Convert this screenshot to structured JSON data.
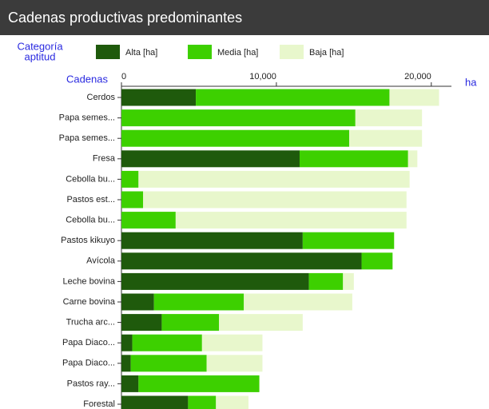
{
  "chart_data": {
    "type": "stacked_bar_horizontal",
    "title": "Cadenas productivas predominantes",
    "legend_title": [
      "Categoría",
      "aptitud"
    ],
    "category_axis_label": "Cadenas",
    "value_axis_label": "ha",
    "categories": [
      "Cerdos",
      "Papa semes...",
      "Papa semes...",
      "Fresa",
      "Cebolla bu...",
      "Pastos est...",
      "Cebolla bu...",
      "Pastos kikuyo",
      "Avícola",
      "Leche bovina",
      "Carne bovina",
      "Trucha arc...",
      "Papa Diaco...",
      "Papa Diaco...",
      "Pastos ray...",
      "Forestal"
    ],
    "series": [
      {
        "name": "Alta [ha]",
        "color": "#1f5a0c",
        "values": [
          4800,
          0,
          0,
          11500,
          0,
          0,
          0,
          11700,
          15500,
          12100,
          2100,
          2600,
          700,
          600,
          1100,
          4300
        ]
      },
      {
        "name": "Media [ha]",
        "color": "#3dd000",
        "values": [
          12500,
          15100,
          14700,
          7000,
          1100,
          1400,
          3500,
          5900,
          2000,
          2200,
          5800,
          3700,
          4500,
          4900,
          7800,
          1800
        ]
      },
      {
        "name": "Baja [ha]",
        "color": "#e8f7cc",
        "values": [
          3200,
          4300,
          4700,
          600,
          17500,
          17000,
          14900,
          0,
          0,
          700,
          7000,
          5400,
          3900,
          3600,
          0,
          2100
        ]
      }
    ],
    "xlim": [
      0,
      21300
    ],
    "xticks": [
      0,
      {
        "value": 10000,
        "label": "10,000"
      },
      {
        "value": 20000,
        "label": "20,000"
      }
    ]
  }
}
